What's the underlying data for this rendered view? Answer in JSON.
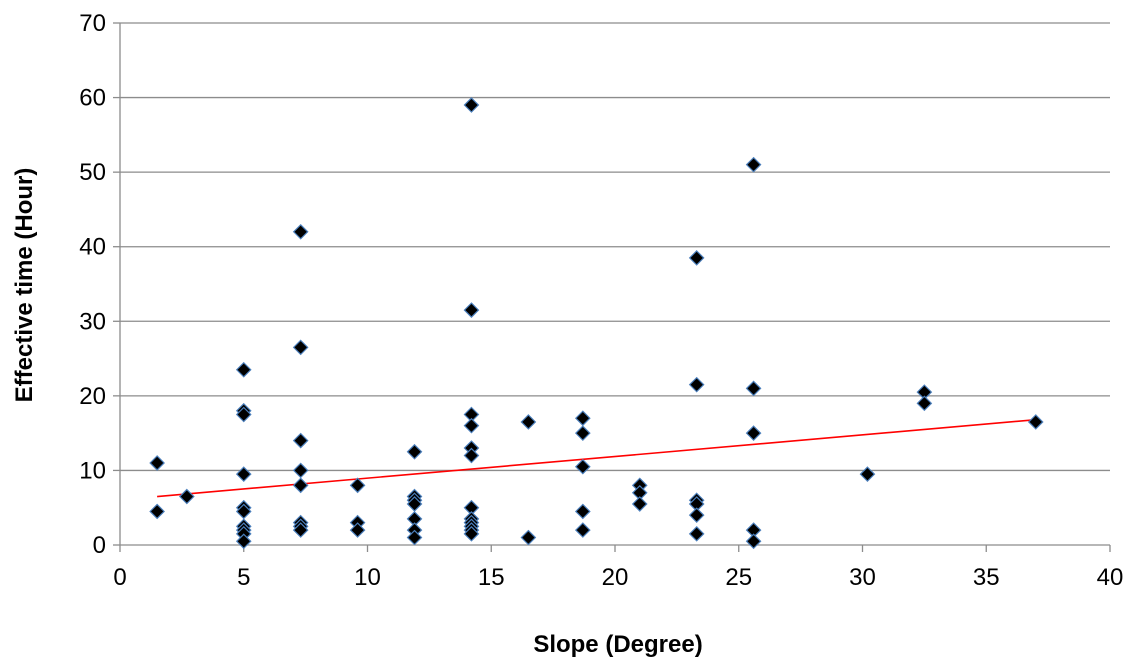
{
  "chart_data": {
    "type": "scatter",
    "title": "",
    "xlabel": "Slope (Degree)",
    "ylabel": "Effective time (Hour)",
    "xlim": [
      0,
      40
    ],
    "ylim": [
      0,
      70
    ],
    "x_ticks": [
      0,
      5,
      10,
      15,
      20,
      25,
      30,
      35,
      40
    ],
    "y_ticks": [
      0,
      10,
      20,
      30,
      40,
      50,
      60,
      70
    ],
    "grid": "horizontal",
    "legend": "none",
    "series": [
      {
        "marker": "diamond",
        "color": "#000000",
        "edge_color": "#4a7ebb",
        "points": [
          [
            1.5,
            11
          ],
          [
            1.5,
            4.5
          ],
          [
            2.7,
            6.5
          ],
          [
            5,
            23.5
          ],
          [
            5,
            18
          ],
          [
            5,
            17.5
          ],
          [
            5,
            9.5
          ],
          [
            5,
            5
          ],
          [
            5,
            4.5
          ],
          [
            5,
            2.5
          ],
          [
            5,
            2
          ],
          [
            5,
            1.5
          ],
          [
            5,
            0.5
          ],
          [
            7.3,
            42
          ],
          [
            7.3,
            26.5
          ],
          [
            7.3,
            14
          ],
          [
            7.3,
            10
          ],
          [
            7.3,
            8
          ],
          [
            7.3,
            3
          ],
          [
            7.3,
            2.5
          ],
          [
            7.3,
            2
          ],
          [
            9.6,
            8
          ],
          [
            9.6,
            3
          ],
          [
            9.6,
            2
          ],
          [
            11.9,
            12.5
          ],
          [
            11.9,
            6.5
          ],
          [
            11.9,
            6
          ],
          [
            11.9,
            5.5
          ],
          [
            11.9,
            3.5
          ],
          [
            11.9,
            2
          ],
          [
            11.9,
            1
          ],
          [
            14.2,
            59
          ],
          [
            14.2,
            31.5
          ],
          [
            14.2,
            17.5
          ],
          [
            14.2,
            16
          ],
          [
            14.2,
            13
          ],
          [
            14.2,
            12
          ],
          [
            14.2,
            5
          ],
          [
            14.2,
            3.5
          ],
          [
            14.2,
            3
          ],
          [
            14.2,
            2.5
          ],
          [
            14.2,
            2
          ],
          [
            14.2,
            1.5
          ],
          [
            16.5,
            16.5
          ],
          [
            16.5,
            1
          ],
          [
            18.7,
            17
          ],
          [
            18.7,
            15
          ],
          [
            18.7,
            10.5
          ],
          [
            18.7,
            4.5
          ],
          [
            18.7,
            2
          ],
          [
            21,
            8
          ],
          [
            21,
            7
          ],
          [
            21,
            5.5
          ],
          [
            23.3,
            38.5
          ],
          [
            23.3,
            21.5
          ],
          [
            23.3,
            6
          ],
          [
            23.3,
            5.5
          ],
          [
            23.3,
            4
          ],
          [
            23.3,
            1.5
          ],
          [
            25.6,
            51
          ],
          [
            25.6,
            21
          ],
          [
            25.6,
            15
          ],
          [
            25.6,
            2
          ],
          [
            25.6,
            0.5
          ],
          [
            30.2,
            9.5
          ],
          [
            32.5,
            20.5
          ],
          [
            32.5,
            19
          ],
          [
            37,
            16.5
          ]
        ]
      }
    ],
    "trendline": {
      "type": "linear",
      "color": "#ff0000",
      "points": [
        [
          1.5,
          6.5
        ],
        [
          37,
          16.8
        ]
      ]
    }
  }
}
